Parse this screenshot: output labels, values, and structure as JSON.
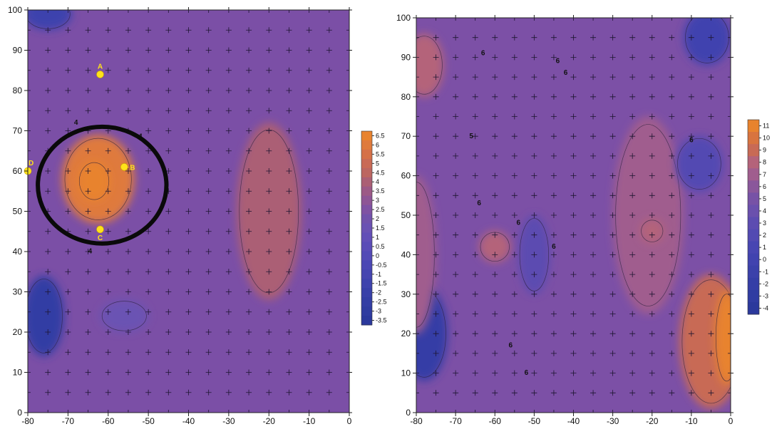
{
  "chart_data": [
    {
      "type": "heatmap",
      "title": "",
      "xlabel": "",
      "ylabel": "",
      "xlim": [
        -80,
        0
      ],
      "ylim": [
        0,
        100
      ],
      "x_ticks": [
        "-80",
        "-70",
        "-60",
        "-50",
        "-40",
        "-30",
        "-20",
        "-10",
        "0"
      ],
      "y_ticks": [
        "0",
        "10",
        "20",
        "30",
        "40",
        "50",
        "60",
        "70",
        "80",
        "90",
        "100"
      ],
      "grid_markers": "plus",
      "grid_spacing": 5,
      "background_color": "#7b4fa6",
      "colorbar": {
        "placement": "right",
        "min": -3.5,
        "max": 6.5,
        "labels": [
          "6.5",
          "6",
          "5.5",
          "5",
          "4.5",
          "4",
          "3.5",
          "3",
          "2.5",
          "2",
          "1.5",
          "1",
          "0.5",
          "0",
          "-0.5",
          "-1",
          "-1.5",
          "-2",
          "-2.5",
          "-3",
          "-3.5"
        ],
        "colors": [
          "#e8832e",
          "#df7a3c",
          "#d57048",
          "#c96a55",
          "#bc6660",
          "#ab5f74",
          "#9c5986",
          "#8e5595",
          "#7f52a3",
          "#7152ab",
          "#6a52b3",
          "#624fb7",
          "#5a4cb7",
          "#534ab6",
          "#4b47b4",
          "#4545b0",
          "#3e43ad",
          "#3840a8",
          "#333ea4",
          "#2f3ca0",
          "#2b399c"
        ]
      },
      "regions": [
        {
          "cx": -62.5,
          "cy": 58,
          "rx": 9,
          "ry": 11,
          "value": 6.0
        },
        {
          "cx": -63.5,
          "cy": 57.5,
          "rx": 4,
          "ry": 5,
          "value": 6.5
        },
        {
          "cx": -76,
          "cy": 24,
          "rx": 5,
          "ry": 10,
          "value": -2.5
        },
        {
          "cx": -75,
          "cy": 99,
          "rx": 6,
          "ry": 4,
          "value": -1.5
        },
        {
          "cx": -56,
          "cy": 24,
          "rx": 6,
          "ry": 4,
          "value": 1.5
        },
        {
          "cx": -20,
          "cy": 50,
          "rx": 8,
          "ry": 22,
          "value": 4.0
        }
      ],
      "points": [
        {
          "label": "A",
          "x": -62,
          "y": 84
        },
        {
          "label": "B",
          "x": -56,
          "y": 61
        },
        {
          "label": "C",
          "x": -62,
          "y": 45.5
        },
        {
          "label": "D",
          "x": -80,
          "y": 60
        }
      ],
      "contour_labels": [
        {
          "text": "4",
          "x": -68,
          "y": 72
        },
        {
          "text": "4",
          "x": -52,
          "y": 68.5
        },
        {
          "text": "4",
          "x": -64.5,
          "y": 40
        }
      ],
      "highlight_circle": {
        "cx": -61.5,
        "cy": 56.5,
        "rx": 16,
        "ry": 14.5
      }
    },
    {
      "type": "heatmap",
      "title": "",
      "xlabel": "",
      "ylabel": "",
      "xlim": [
        -80,
        0
      ],
      "ylim": [
        0,
        100
      ],
      "x_ticks": [
        "-80",
        "-70",
        "-60",
        "-50",
        "-40",
        "-30",
        "-20",
        "-10",
        "0"
      ],
      "y_ticks": [
        "0",
        "10",
        "20",
        "30",
        "40",
        "50",
        "60",
        "70",
        "80",
        "90",
        "100"
      ],
      "grid_markers": "plus",
      "grid_spacing": 5,
      "background_color": "#7c50a6",
      "colorbar": {
        "placement": "right",
        "min": -4,
        "max": 11,
        "labels": [
          "11",
          "10",
          "9",
          "8",
          "7",
          "6",
          "5",
          "4",
          "3",
          "2",
          "1",
          "0",
          "-1",
          "-2",
          "-3",
          "-4"
        ],
        "colors": [
          "#e8832e",
          "#d8743f",
          "#c86a55",
          "#b4637a",
          "#a05d8e",
          "#8a579b",
          "#7752a6",
          "#6a50ad",
          "#5c4cb1",
          "#524ab2",
          "#4846b2",
          "#4143af",
          "#3b41aa",
          "#353ea6",
          "#303ca2",
          "#2b399c"
        ]
      },
      "regions": [
        {
          "cx": -5,
          "cy": 18,
          "rx": 8,
          "ry": 17,
          "value": 9
        },
        {
          "cx": -1,
          "cy": 19,
          "rx": 3,
          "ry": 12,
          "value": 11
        },
        {
          "cx": -21,
          "cy": 50,
          "rx": 9,
          "ry": 25,
          "value": 7
        },
        {
          "cx": -20,
          "cy": 46,
          "rx": 3,
          "ry": 3,
          "value": 8
        },
        {
          "cx": -78,
          "cy": 20,
          "rx": 6,
          "ry": 12,
          "value": -2
        },
        {
          "cx": -8,
          "cy": 63,
          "rx": 6,
          "ry": 7,
          "value": 2
        },
        {
          "cx": -6,
          "cy": 95,
          "rx": 6,
          "ry": 7,
          "value": 0
        },
        {
          "cx": -50,
          "cy": 40,
          "rx": 4,
          "ry": 10,
          "value": 3
        },
        {
          "cx": -78,
          "cy": 88,
          "rx": 5,
          "ry": 8,
          "value": 8
        },
        {
          "cx": -80,
          "cy": 40,
          "rx": 5,
          "ry": 20,
          "value": 7
        },
        {
          "cx": -60,
          "cy": 42,
          "rx": 4,
          "ry": 4,
          "value": 8
        }
      ],
      "contour_labels": [
        {
          "text": "6",
          "x": -63,
          "y": 91
        },
        {
          "text": "6",
          "x": -44,
          "y": 89
        },
        {
          "text": "6",
          "x": -42,
          "y": 86
        },
        {
          "text": "5",
          "x": -66,
          "y": 70
        },
        {
          "text": "6",
          "x": -64,
          "y": 53
        },
        {
          "text": "6",
          "x": -54,
          "y": 48
        },
        {
          "text": "6",
          "x": -45,
          "y": 42
        },
        {
          "text": "6",
          "x": -56,
          "y": 17
        },
        {
          "text": "6",
          "x": -52,
          "y": 10
        },
        {
          "text": "6",
          "x": -10,
          "y": 69
        }
      ]
    }
  ]
}
